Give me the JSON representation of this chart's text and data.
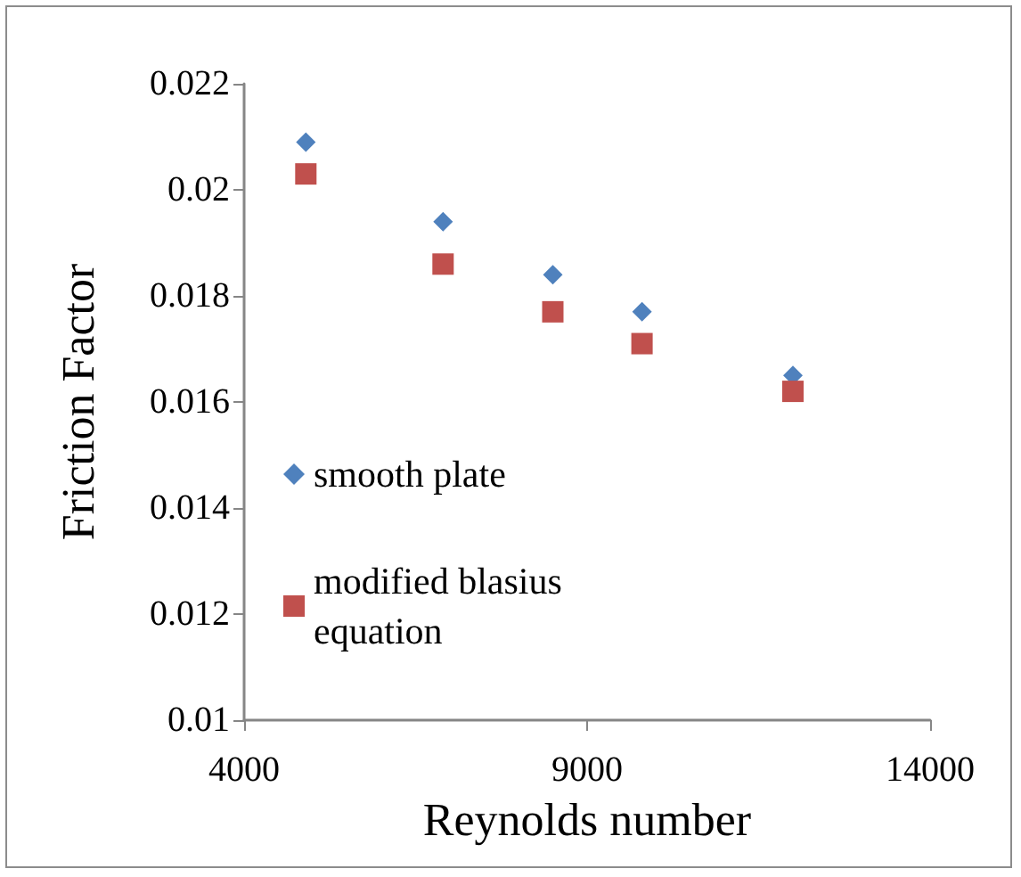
{
  "chart_data": {
    "type": "scatter",
    "xlabel": "Reynolds number",
    "ylabel": "Friction Factor",
    "xlim": [
      4000,
      14000
    ],
    "xticks": [
      4000,
      9000,
      14000
    ],
    "ylim": [
      0.01,
      0.022
    ],
    "yticks": [
      0.01,
      0.012,
      0.014,
      0.016,
      0.018,
      0.02,
      0.022
    ],
    "grid": false,
    "legend": "left",
    "series": [
      {
        "name": "smooth plate",
        "color": "#4f81bd",
        "marker": "diamond",
        "x": [
          4900,
          6900,
          8500,
          9800,
          12000
        ],
        "values": [
          0.0209,
          0.0194,
          0.0184,
          0.0177,
          0.0165
        ]
      },
      {
        "name": "modified blasius equation",
        "color": "#c0504d",
        "marker": "square",
        "x": [
          4900,
          6900,
          8500,
          9800,
          12000
        ],
        "values": [
          0.0203,
          0.0186,
          0.0177,
          0.0171,
          0.0162
        ]
      }
    ]
  }
}
